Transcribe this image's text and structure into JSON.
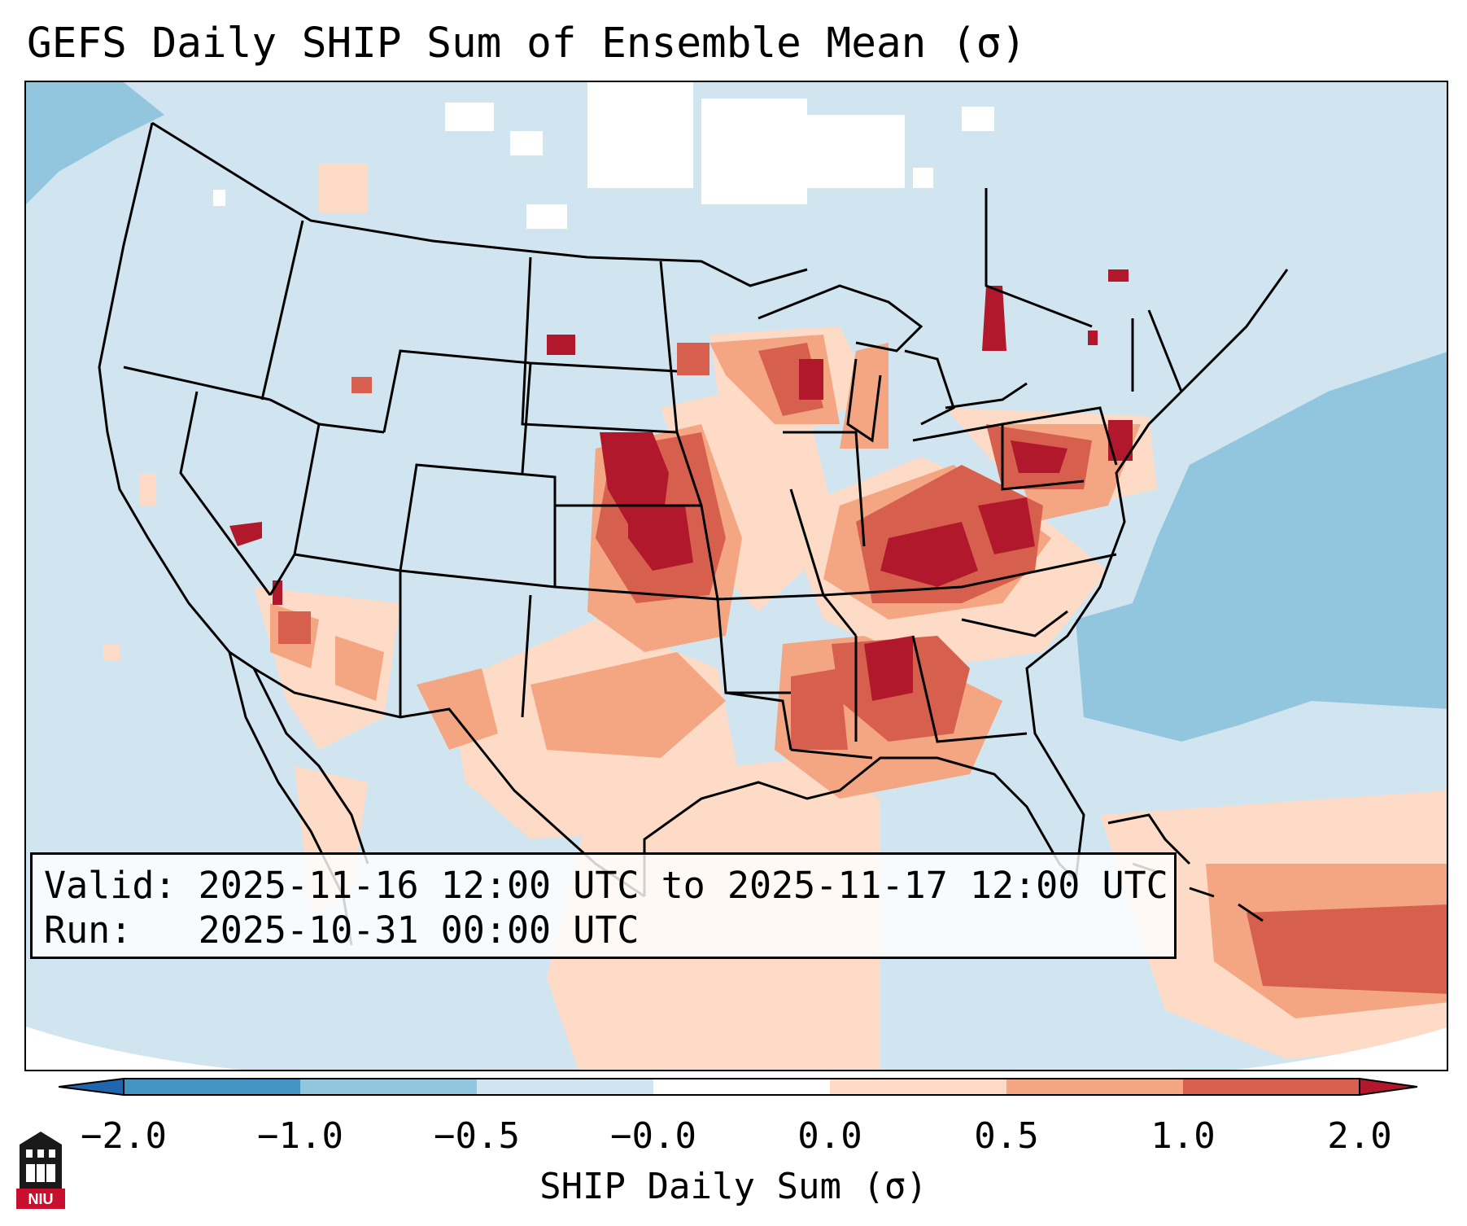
{
  "title": "GEFS Daily SHIP Sum of Ensemble Mean (σ)",
  "info": {
    "valid_label": "Valid:",
    "valid_value": "2025-11-16 12:00 UTC to 2025-11-17 12:00 UTC",
    "run_label": "Run:",
    "run_value": "2025-10-31 00:00 UTC"
  },
  "colorbar": {
    "label": "SHIP Daily Sum (σ)",
    "ticks": [
      "−2.0",
      "−1.0",
      "−0.5",
      "−0.0",
      "0.0",
      "0.5",
      "1.0",
      "2.0"
    ],
    "colors": [
      "#2166ac",
      "#4393c3",
      "#92c5de",
      "#d1e5f0",
      "#ffffff",
      "#fddbc7",
      "#f4a582",
      "#d6604d",
      "#b2182b"
    ]
  },
  "legend_colors": {
    "below_minus_1": "#4393c3",
    "minus_1_to_minus_0_5": "#92c5de",
    "minus_0_5_to_0": "#d1e5f0",
    "zero": "#ffffff",
    "0_to_0_5": "#fddbc7",
    "0_5_to_1": "#f4a582",
    "1_to_2": "#d6604d",
    "above_2": "#b2182b"
  },
  "logo": {
    "text": "NIU",
    "icon": "university-tower-icon"
  }
}
